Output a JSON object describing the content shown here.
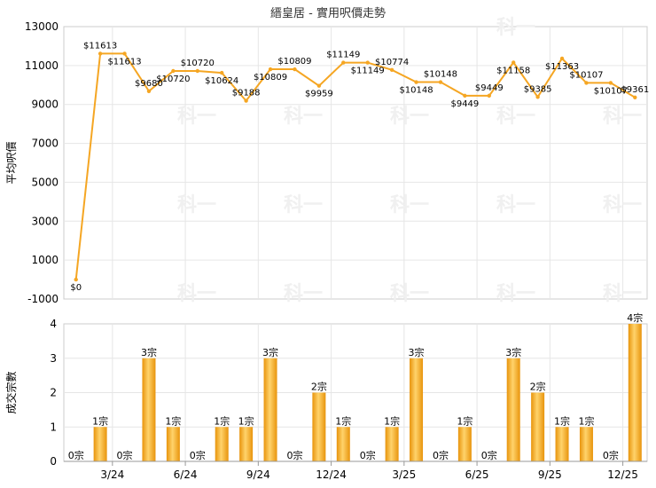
{
  "chart_data": [
    {
      "type": "line",
      "title": "縉皇居 - 實用呎價走勢",
      "ylabel": "平均呎價",
      "ylim": [
        -1000,
        13000
      ],
      "yticks": [
        -1000,
        1000,
        3000,
        5000,
        7000,
        9000,
        11000,
        13000
      ],
      "grid": true,
      "color": "#f5a623",
      "series": [
        {
          "values": [
            0,
            11613,
            11613,
            9680,
            10720,
            10720,
            10624,
            9188,
            10809,
            10809,
            9959,
            11149,
            11149,
            10774,
            10148,
            10148,
            9449,
            9449,
            11158,
            9385,
            11363,
            10107,
            10107,
            9361
          ],
          "labels": [
            "$0",
            "$11613",
            "$11613",
            "$9680",
            "$10720",
            "$10720",
            "$10624",
            "$9188",
            "$10809",
            "$10809",
            "$9959",
            "$11149",
            "$11149",
            "$10774",
            "$10148",
            "$10148",
            "$9449",
            "$9449",
            "$11158",
            "$9385",
            "$11363",
            "$10107",
            "$10107",
            "$9361"
          ]
        }
      ]
    },
    {
      "type": "bar",
      "ylabel": "成交宗數",
      "ylim": [
        0,
        4
      ],
      "yticks": [
        0,
        1,
        2,
        3,
        4
      ],
      "x_tick_labels": [
        "3/24",
        "6/24",
        "9/24",
        "12/24",
        "3/25",
        "6/25",
        "9/25",
        "12/25"
      ],
      "color": "#f5a623",
      "series": [
        {
          "values": [
            0,
            1,
            0,
            3,
            1,
            0,
            1,
            1,
            3,
            0,
            2,
            1,
            0,
            1,
            3,
            0,
            1,
            0,
            3,
            2,
            1,
            1,
            0,
            4
          ],
          "labels": [
            "0宗",
            "1宗",
            "0宗",
            "3宗",
            "1宗",
            "0宗",
            "1宗",
            "1宗",
            "3宗",
            "0宗",
            "2宗",
            "1宗",
            "0宗",
            "1宗",
            "3宗",
            "0宗",
            "1宗",
            "0宗",
            "3宗",
            "2宗",
            "1宗",
            "1宗",
            "0宗",
            "4宗"
          ]
        }
      ]
    }
  ],
  "watermark": "科一"
}
